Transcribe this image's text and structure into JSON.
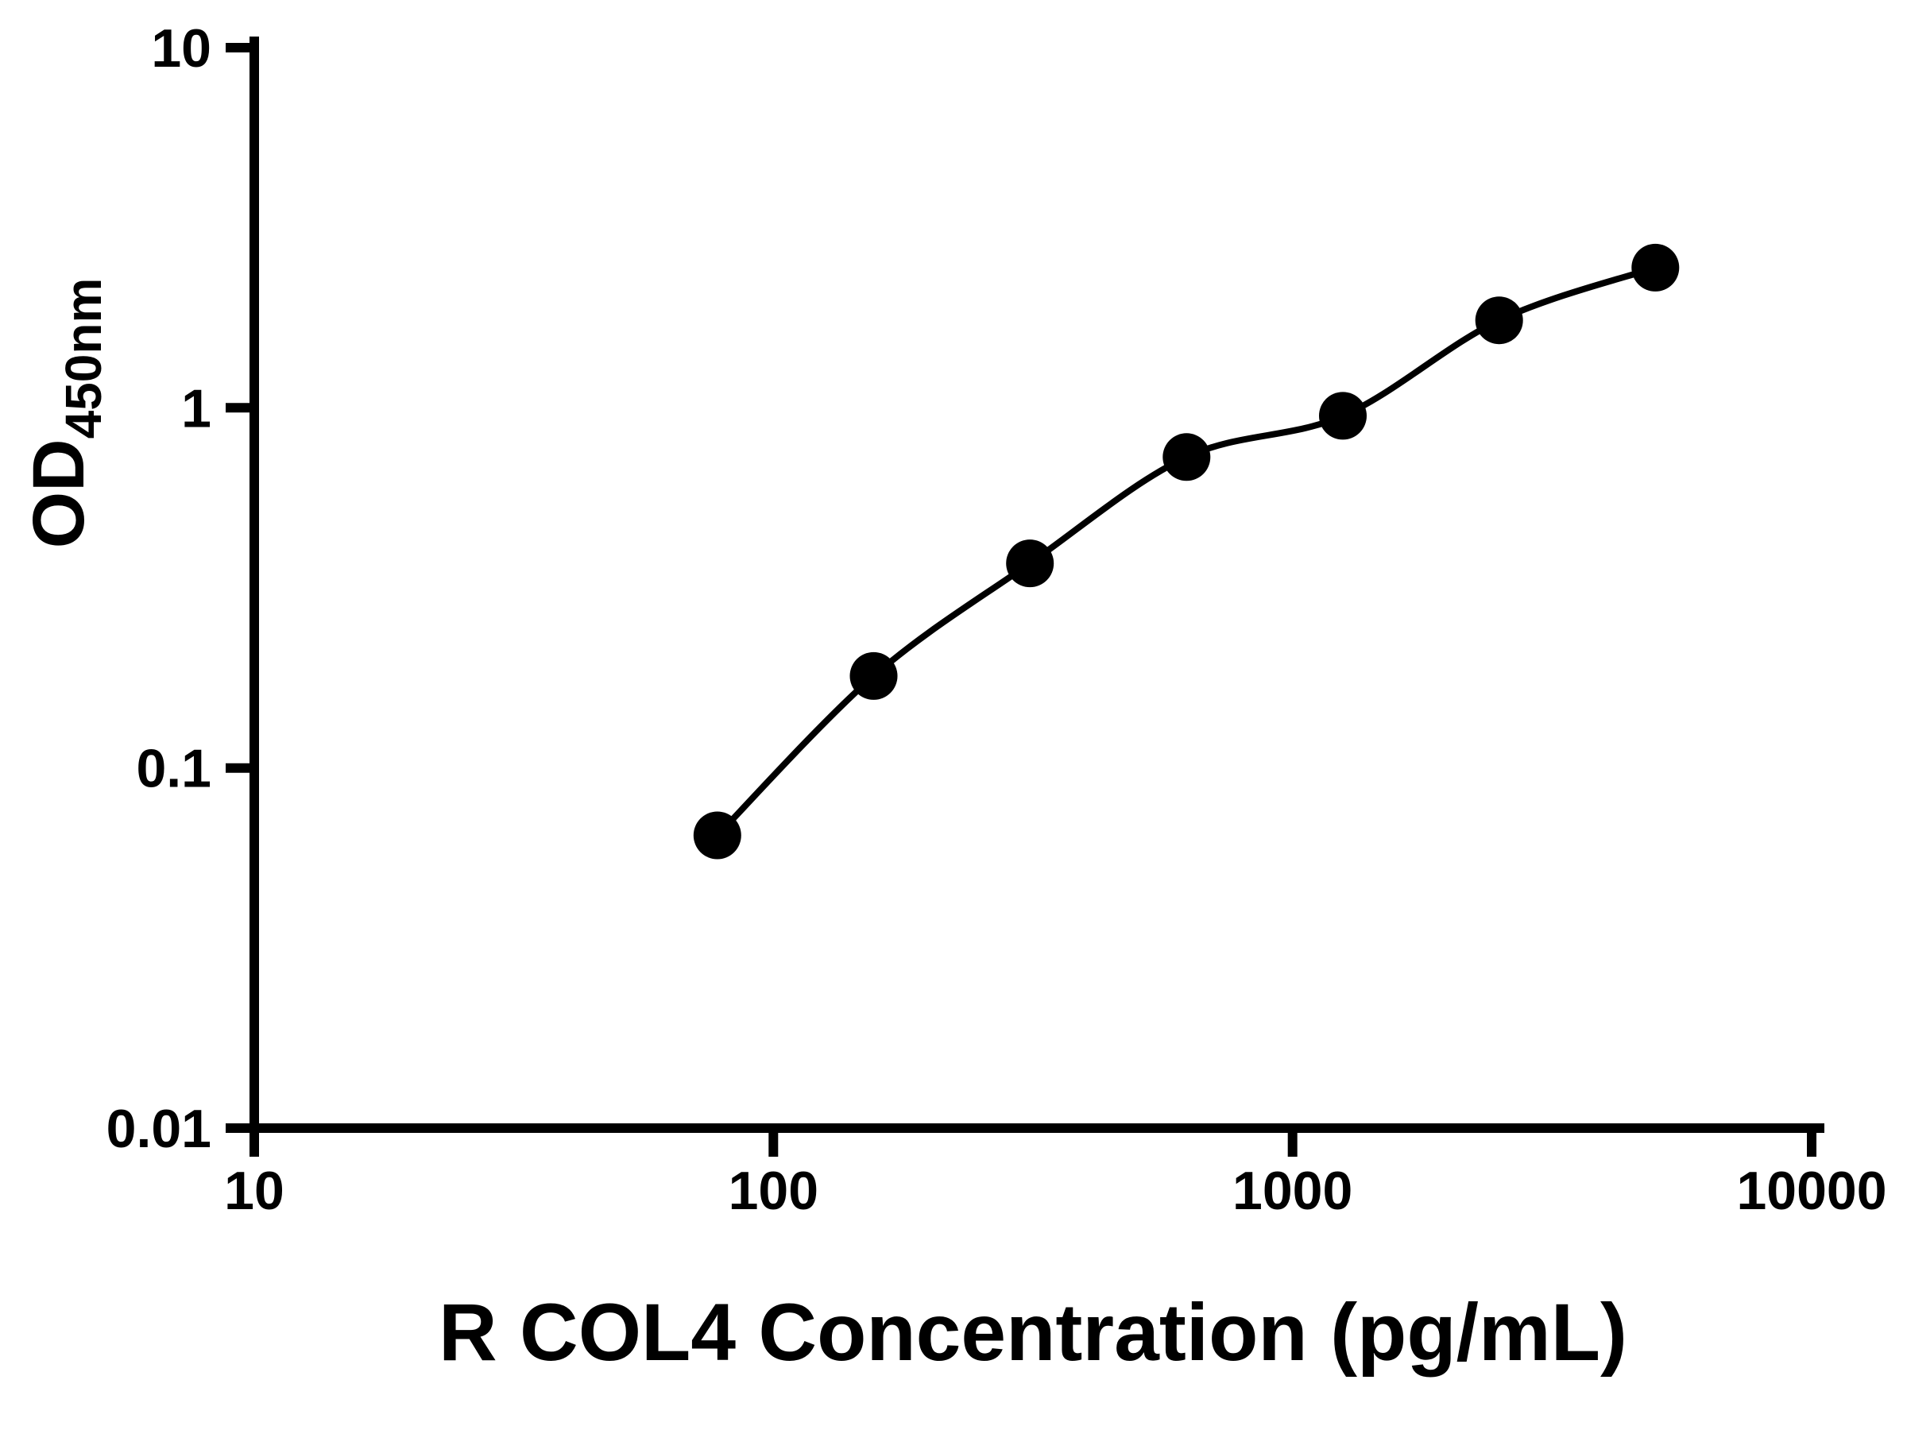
{
  "chart_data": {
    "type": "scatter",
    "title": "",
    "xlabel": "R COL4 Concentration (pg/mL)",
    "ylabel": "OD450nm",
    "ylabel_main": "OD",
    "ylabel_sub": "450nm",
    "x_scale": "log10",
    "y_scale": "log10",
    "xlim": [
      10,
      10000
    ],
    "ylim": [
      0.01,
      10
    ],
    "x_ticks": [
      10,
      100,
      1000,
      10000
    ],
    "x_tick_labels": [
      "10",
      "100",
      "1000",
      "10000"
    ],
    "y_ticks": [
      0.01,
      0.1,
      1,
      10
    ],
    "y_tick_labels": [
      "0.01",
      "0.1",
      "1",
      "10"
    ],
    "grid": false,
    "legend": "none",
    "background_color": "#ffffff",
    "axis_color": "#000000",
    "line_color": "#000000",
    "marker_color": "#000000",
    "marker_style": "filled-circle",
    "series": [
      {
        "x": [
          78,
          156,
          312,
          625,
          1250,
          2500,
          5000
        ],
        "y": [
          0.065,
          0.18,
          0.37,
          0.73,
          0.95,
          1.75,
          2.45
        ]
      }
    ]
  }
}
